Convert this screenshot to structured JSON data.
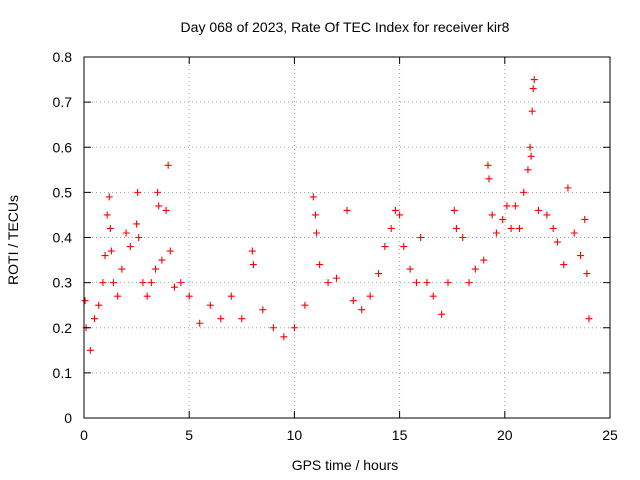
{
  "chart_data": {
    "type": "scatter",
    "title": "Day 068 of 2023, Rate Of TEC Index for receiver kir8",
    "xlabel": "GPS time / hours",
    "ylabel": "ROTI / TECUs",
    "xlim": [
      0,
      25
    ],
    "ylim": [
      0,
      0.8
    ],
    "x_ticks": [
      "0",
      "5",
      "10",
      "15",
      "20",
      "25"
    ],
    "y_ticks": [
      "0",
      "0.1",
      "0.2",
      "0.3",
      "0.4",
      "0.5",
      "0.6",
      "0.7",
      "0.8"
    ],
    "grid": true,
    "marker": "+",
    "color": "#ff0000",
    "series": [
      {
        "points": [
          [
            0.05,
            0.26
          ],
          [
            0.1,
            0.2
          ],
          [
            0.3,
            0.15
          ],
          [
            0.5,
            0.22
          ],
          [
            0.7,
            0.25
          ],
          [
            0.9,
            0.3
          ],
          [
            1.0,
            0.36
          ],
          [
            1.1,
            0.45
          ],
          [
            1.2,
            0.49
          ],
          [
            1.25,
            0.42
          ],
          [
            1.3,
            0.37
          ],
          [
            1.4,
            0.3
          ],
          [
            1.6,
            0.27
          ],
          [
            1.8,
            0.33
          ],
          [
            2.0,
            0.41
          ],
          [
            2.2,
            0.38
          ],
          [
            2.5,
            0.43
          ],
          [
            2.55,
            0.5
          ],
          [
            2.6,
            0.4
          ],
          [
            2.8,
            0.3
          ],
          [
            3.0,
            0.27
          ],
          [
            3.2,
            0.3
          ],
          [
            3.4,
            0.33
          ],
          [
            3.5,
            0.5
          ],
          [
            3.55,
            0.47
          ],
          [
            3.7,
            0.35
          ],
          [
            3.9,
            0.46
          ],
          [
            4.0,
            0.56
          ],
          [
            4.1,
            0.37
          ],
          [
            4.3,
            0.29
          ],
          [
            4.6,
            0.3
          ],
          [
            5.0,
            0.27
          ],
          [
            5.5,
            0.21
          ],
          [
            6.0,
            0.25
          ],
          [
            6.5,
            0.22
          ],
          [
            7.0,
            0.27
          ],
          [
            7.5,
            0.22
          ],
          [
            8.0,
            0.37
          ],
          [
            8.05,
            0.34
          ],
          [
            8.5,
            0.24
          ],
          [
            9.0,
            0.2
          ],
          [
            9.5,
            0.18
          ],
          [
            10.0,
            0.2
          ],
          [
            10.5,
            0.25
          ],
          [
            10.9,
            0.49
          ],
          [
            11.0,
            0.45
          ],
          [
            11.05,
            0.41
          ],
          [
            11.2,
            0.34
          ],
          [
            11.6,
            0.3
          ],
          [
            12.0,
            0.31
          ],
          [
            12.5,
            0.46
          ],
          [
            12.8,
            0.26
          ],
          [
            13.2,
            0.24
          ],
          [
            13.6,
            0.27
          ],
          [
            14.0,
            0.32
          ],
          [
            14.3,
            0.38
          ],
          [
            14.6,
            0.42
          ],
          [
            14.8,
            0.46
          ],
          [
            15.0,
            0.45
          ],
          [
            15.2,
            0.38
          ],
          [
            15.5,
            0.33
          ],
          [
            15.8,
            0.3
          ],
          [
            16.0,
            0.4
          ],
          [
            16.3,
            0.3
          ],
          [
            16.6,
            0.27
          ],
          [
            17.0,
            0.23
          ],
          [
            17.3,
            0.3
          ],
          [
            17.6,
            0.46
          ],
          [
            17.7,
            0.42
          ],
          [
            18.0,
            0.4
          ],
          [
            18.3,
            0.3
          ],
          [
            18.6,
            0.33
          ],
          [
            19.0,
            0.35
          ],
          [
            19.2,
            0.56
          ],
          [
            19.25,
            0.53
          ],
          [
            19.4,
            0.45
          ],
          [
            19.6,
            0.41
          ],
          [
            19.9,
            0.44
          ],
          [
            20.1,
            0.47
          ],
          [
            20.3,
            0.42
          ],
          [
            20.5,
            0.47
          ],
          [
            20.7,
            0.42
          ],
          [
            20.9,
            0.5
          ],
          [
            21.1,
            0.55
          ],
          [
            21.2,
            0.6
          ],
          [
            21.25,
            0.58
          ],
          [
            21.3,
            0.68
          ],
          [
            21.35,
            0.73
          ],
          [
            21.4,
            0.75
          ],
          [
            21.6,
            0.46
          ],
          [
            22.0,
            0.45
          ],
          [
            22.3,
            0.42
          ],
          [
            22.5,
            0.39
          ],
          [
            22.8,
            0.34
          ],
          [
            23.0,
            0.51
          ],
          [
            23.3,
            0.41
          ],
          [
            23.6,
            0.36
          ],
          [
            23.8,
            0.44
          ],
          [
            23.9,
            0.32
          ],
          [
            24.0,
            0.22
          ]
        ]
      }
    ]
  }
}
